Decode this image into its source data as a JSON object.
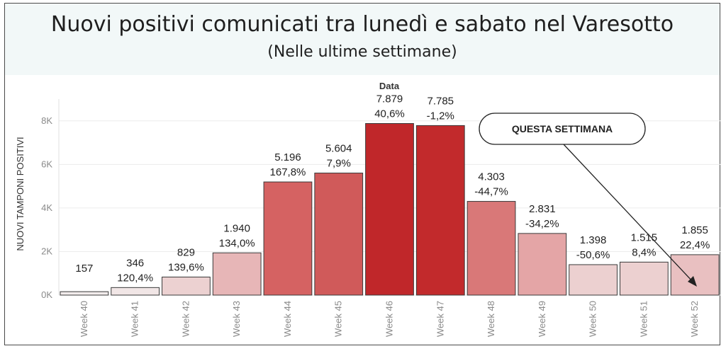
{
  "chart_data": {
    "type": "bar",
    "title": "Nuovi positivi comunicati tra lunedì e sabato nel Varesotto",
    "subtitle": "(Nelle ultime settimane)",
    "xlabel": "Data",
    "ylabel": "NUOVI TAMPONI POSITIVI",
    "ylim": [
      0,
      9000
    ],
    "yticks": [
      0,
      2000,
      4000,
      6000,
      8000
    ],
    "ytick_labels": [
      "0K",
      "2K",
      "4K",
      "6K",
      "8K"
    ],
    "grid": true,
    "categories": [
      "Week 40",
      "Week 41",
      "Week 42",
      "Week 43",
      "Week 44",
      "Week 45",
      "Week 46",
      "Week 47",
      "Week 48",
      "Week 49",
      "Week 50",
      "Week 51",
      "Week 52"
    ],
    "values": [
      157,
      346,
      829,
      1940,
      5196,
      5604,
      7879,
      7785,
      4303,
      2831,
      1398,
      1515,
      1855
    ],
    "value_labels": [
      "157",
      "346",
      "829",
      "1.940",
      "5.196",
      "5.604",
      "7.879",
      "7.785",
      "4.303",
      "2.831",
      "1.398",
      "1.515",
      "1.855"
    ],
    "change_labels": [
      "",
      "120,4%",
      "139,6%",
      "134,0%",
      "167,8%",
      "7,9%",
      "40,6%",
      "-1,2%",
      "-44,7%",
      "-34,2%",
      "-50,6%",
      "8,4%",
      "22,4%"
    ],
    "bar_colors": [
      "#f2ecec",
      "#f1e6e6",
      "#ecd1d1",
      "#e7b6b7",
      "#d56262",
      "#d05a5a",
      "#c0272a",
      "#c22a2c",
      "#d97878",
      "#e4a5a6",
      "#ecd0d0",
      "#ecd0d0",
      "#e9c0c1"
    ],
    "annotation": {
      "text": "QUESTA SETTIMANA",
      "target_category": "Week 52"
    }
  }
}
